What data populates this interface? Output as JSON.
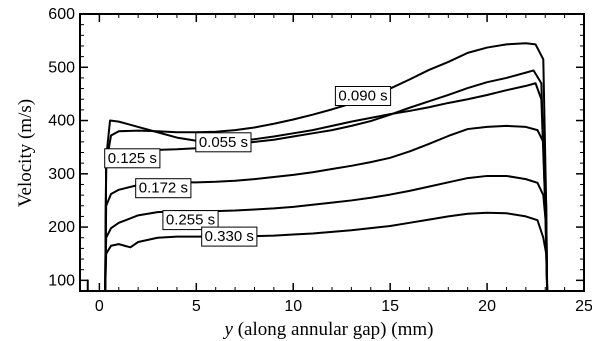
{
  "chart_data": {
    "type": "line",
    "xlabel_var": "y",
    "xlabel_rest": " (along annular gap) (mm)",
    "ylabel": "Velocity (m/s)",
    "xlim": [
      -1,
      25
    ],
    "ylim": [
      80,
      600
    ],
    "xticks": [
      0,
      5,
      10,
      15,
      20,
      25
    ],
    "yticks": [
      100,
      200,
      300,
      400,
      500,
      600
    ],
    "grid": false,
    "series": [
      {
        "name": "0.055 s",
        "label_at": [
          6.4,
          360
        ],
        "points": [
          [
            -0.6,
            100
          ],
          [
            -0.6,
            80
          ],
          [
            0.3,
            80
          ],
          [
            0.35,
            330
          ],
          [
            0.55,
            400
          ],
          [
            1,
            398
          ],
          [
            2,
            388
          ],
          [
            3,
            378
          ],
          [
            4,
            368
          ],
          [
            5,
            362
          ],
          [
            6,
            358
          ],
          [
            7,
            360
          ],
          [
            8,
            365
          ],
          [
            9,
            370
          ],
          [
            10,
            376
          ],
          [
            11,
            382
          ],
          [
            12,
            390
          ],
          [
            13,
            398
          ],
          [
            14,
            405
          ],
          [
            15,
            412
          ],
          [
            16,
            418
          ],
          [
            17,
            425
          ],
          [
            18,
            433
          ],
          [
            19,
            440
          ],
          [
            20,
            448
          ],
          [
            21,
            457
          ],
          [
            22,
            465
          ],
          [
            22.5,
            470
          ],
          [
            22.8,
            440
          ],
          [
            23,
            240
          ],
          [
            23.1,
            80
          ]
        ]
      },
      {
        "name": "0.090 s",
        "label_at": [
          13.6,
          447
        ],
        "points": [
          [
            0.3,
            80
          ],
          [
            0.35,
            320
          ],
          [
            0.6,
            372
          ],
          [
            1,
            380
          ],
          [
            2,
            381
          ],
          [
            3,
            380
          ],
          [
            4,
            378
          ],
          [
            5,
            378
          ],
          [
            6,
            379
          ],
          [
            7,
            382
          ],
          [
            8,
            387
          ],
          [
            9,
            394
          ],
          [
            10,
            402
          ],
          [
            11,
            411
          ],
          [
            12,
            421
          ],
          [
            13,
            432
          ],
          [
            14,
            445
          ],
          [
            15,
            460
          ],
          [
            16,
            477
          ],
          [
            17,
            495
          ],
          [
            18,
            510
          ],
          [
            19,
            527
          ],
          [
            20,
            537
          ],
          [
            21,
            543
          ],
          [
            22,
            545
          ],
          [
            22.5,
            543
          ],
          [
            22.9,
            515
          ],
          [
            23.05,
            240
          ],
          [
            23.1,
            80
          ]
        ]
      },
      {
        "name": "0.125 s",
        "label_at": [
          1.7,
          330
        ],
        "points": [
          [
            0.3,
            80
          ],
          [
            0.35,
            310
          ],
          [
            0.6,
            336
          ],
          [
            1,
            338
          ],
          [
            2,
            342
          ],
          [
            3,
            345
          ],
          [
            4,
            346
          ],
          [
            5,
            348
          ],
          [
            6,
            351
          ],
          [
            7,
            355
          ],
          [
            8,
            360
          ],
          [
            9,
            364
          ],
          [
            10,
            370
          ],
          [
            11,
            376
          ],
          [
            12,
            382
          ],
          [
            13,
            390
          ],
          [
            14,
            399
          ],
          [
            15,
            411
          ],
          [
            16,
            424
          ],
          [
            17,
            436
          ],
          [
            18,
            448
          ],
          [
            19,
            461
          ],
          [
            20,
            472
          ],
          [
            21,
            480
          ],
          [
            22,
            490
          ],
          [
            22.4,
            494
          ],
          [
            22.8,
            470
          ],
          [
            23,
            240
          ],
          [
            23.1,
            80
          ]
        ]
      },
      {
        "name": "0.172 s",
        "label_at": [
          3.3,
          274
        ],
        "points": [
          [
            0.3,
            80
          ],
          [
            0.35,
            240
          ],
          [
            0.6,
            262
          ],
          [
            1,
            270
          ],
          [
            2,
            279
          ],
          [
            3,
            283
          ],
          [
            4,
            284
          ],
          [
            5,
            284
          ],
          [
            6,
            285
          ],
          [
            7,
            287
          ],
          [
            8,
            290
          ],
          [
            9,
            294
          ],
          [
            10,
            298
          ],
          [
            11,
            303
          ],
          [
            12,
            309
          ],
          [
            13,
            315
          ],
          [
            14,
            322
          ],
          [
            15,
            330
          ],
          [
            16,
            342
          ],
          [
            17,
            356
          ],
          [
            18,
            371
          ],
          [
            19,
            384
          ],
          [
            20,
            388
          ],
          [
            21,
            390
          ],
          [
            22,
            388
          ],
          [
            22.6,
            382
          ],
          [
            22.9,
            360
          ],
          [
            23.05,
            240
          ],
          [
            23.1,
            80
          ]
        ]
      },
      {
        "name": "0.255 s",
        "label_at": [
          4.7,
          214
        ],
        "points": [
          [
            0.3,
            80
          ],
          [
            0.35,
            180
          ],
          [
            0.6,
            198
          ],
          [
            1,
            208
          ],
          [
            2,
            222
          ],
          [
            3,
            228
          ],
          [
            4,
            230
          ],
          [
            5,
            230
          ],
          [
            6,
            230
          ],
          [
            7,
            231
          ],
          [
            8,
            233
          ],
          [
            9,
            235
          ],
          [
            10,
            238
          ],
          [
            11,
            242
          ],
          [
            12,
            246
          ],
          [
            13,
            250
          ],
          [
            14,
            255
          ],
          [
            15,
            261
          ],
          [
            16,
            268
          ],
          [
            17,
            276
          ],
          [
            18,
            284
          ],
          [
            19,
            292
          ],
          [
            20,
            296
          ],
          [
            21,
            296
          ],
          [
            22,
            290
          ],
          [
            22.6,
            283
          ],
          [
            22.9,
            260
          ],
          [
            23.05,
            200
          ],
          [
            23.1,
            80
          ]
        ]
      },
      {
        "name": "0.330 s",
        "label_at": [
          6.7,
          183
        ],
        "points": [
          [
            0.3,
            80
          ],
          [
            0.35,
            150
          ],
          [
            0.6,
            165
          ],
          [
            1,
            168
          ],
          [
            1.6,
            162
          ],
          [
            2,
            172
          ],
          [
            3,
            180
          ],
          [
            4,
            182
          ],
          [
            5,
            182
          ],
          [
            6,
            182
          ],
          [
            7,
            182
          ],
          [
            8,
            183
          ],
          [
            9,
            184
          ],
          [
            10,
            186
          ],
          [
            11,
            188
          ],
          [
            12,
            191
          ],
          [
            13,
            194
          ],
          [
            14,
            198
          ],
          [
            15,
            202
          ],
          [
            16,
            208
          ],
          [
            17,
            214
          ],
          [
            18,
            220
          ],
          [
            19,
            225
          ],
          [
            20,
            227
          ],
          [
            21,
            226
          ],
          [
            22,
            220
          ],
          [
            22.6,
            213
          ],
          [
            22.9,
            180
          ],
          [
            23.05,
            150
          ],
          [
            23.1,
            80
          ]
        ]
      }
    ]
  }
}
